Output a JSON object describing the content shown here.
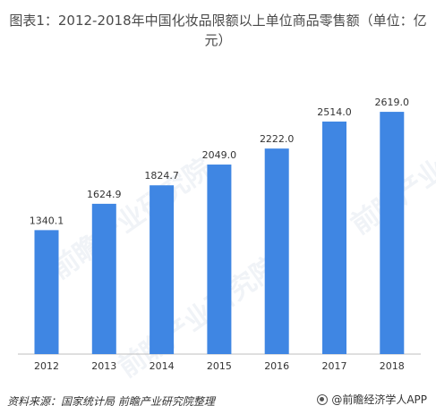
{
  "chart_data": {
    "type": "bar",
    "title": "图表1：2012-2018年中国化妆品限额以上单位商品零售额（单位：亿元）",
    "categories": [
      "2012",
      "2013",
      "2014",
      "2015",
      "2016",
      "2017",
      "2018"
    ],
    "values": [
      1340.1,
      1624.9,
      1824.7,
      2049.0,
      2222.0,
      2514.0,
      2619.0
    ],
    "value_labels": [
      "1340.1",
      "1624.9",
      "1824.7",
      "2049.0",
      "2222.0",
      "2514.0",
      "2619.0"
    ],
    "xlabel": "",
    "ylabel": "",
    "ylim": [
      0,
      2900
    ],
    "bar_color": "#3F86E3",
    "grid": false,
    "legend": "none"
  },
  "footer": {
    "source": "资料来源：国家统计局 前瞻产业研究院整理",
    "brand": "@前瞻经济学人APP",
    "brand_icon": "qianzhan-logo-icon"
  },
  "watermark": {
    "text": "前瞻产业研究院"
  }
}
